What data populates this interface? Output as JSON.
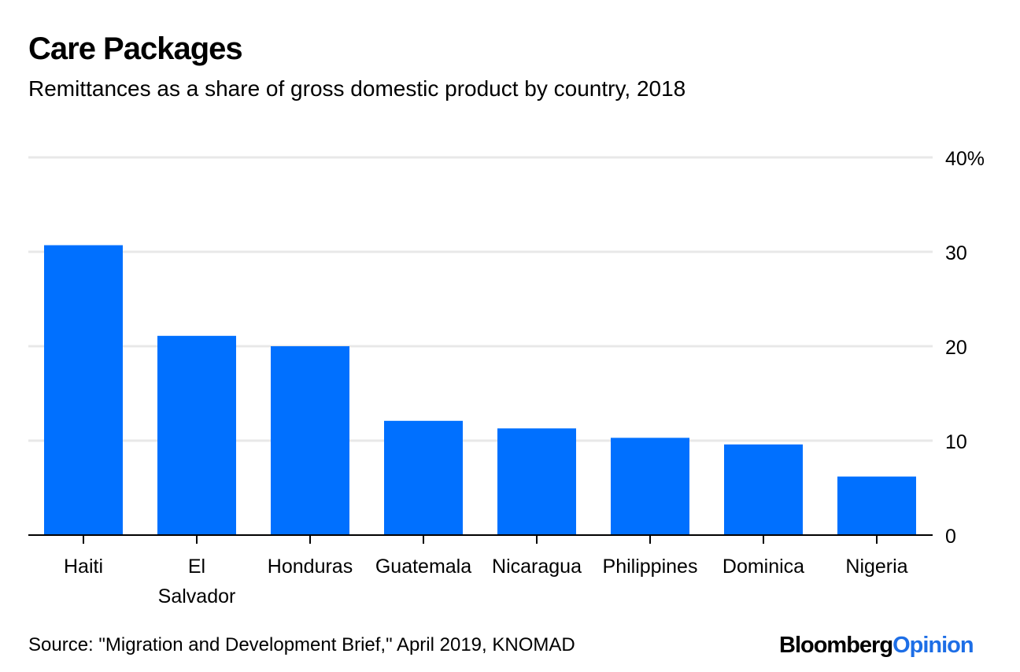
{
  "header": {
    "title": "Care Packages",
    "subtitle": "Remittances as a share of gross domestic product by country, 2018"
  },
  "footer": {
    "source": "Source: \"Migration and Development Brief,\" April 2019, KNOMAD",
    "logo_bloomberg": "Bloomberg",
    "logo_opinion": "Opinion"
  },
  "colors": {
    "bar": "#0070ff",
    "gridline": "#e8e8e8",
    "axis": "#000000",
    "logo_accent": "#1d6ee6"
  },
  "chart_data": {
    "type": "bar",
    "title": "Care Packages",
    "subtitle": "Remittances as a share of gross domestic product by country, 2018",
    "xlabel": "",
    "ylabel": "",
    "categories": [
      "Haiti",
      "El Salvador",
      "Honduras",
      "Guatemala",
      "Nicaragua",
      "Philippines",
      "Dominica",
      "Nigeria"
    ],
    "category_label_lines": [
      [
        "Haiti"
      ],
      [
        "El",
        "Salvador"
      ],
      [
        "Honduras"
      ],
      [
        "Guatemala"
      ],
      [
        "Nicaragua"
      ],
      [
        "Philippines"
      ],
      [
        "Dominica"
      ],
      [
        "Nigeria"
      ]
    ],
    "values": [
      30.7,
      21.1,
      20.0,
      12.1,
      11.3,
      10.3,
      9.6,
      6.2
    ],
    "ylim": [
      0,
      40
    ],
    "yticks": [
      0,
      10,
      20,
      30,
      40
    ],
    "ytick_labels": [
      "0",
      "10",
      "20",
      "30",
      "40%"
    ],
    "y_axis_side": "right",
    "grid": true,
    "legend": "none",
    "source": "Source: \"Migration and Development Brief,\" April 2019, KNOMAD"
  }
}
